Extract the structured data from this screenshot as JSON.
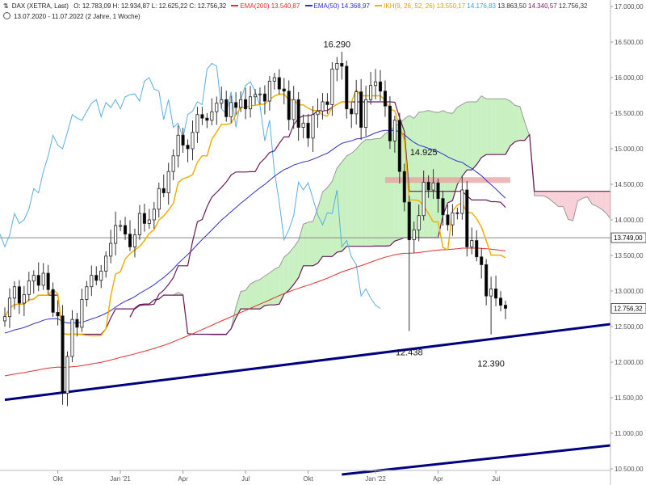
{
  "header": {
    "line1": {
      "symbol": "DAX (XETRA, Last)",
      "ohlc": "O: 12.783,09  H: 12.934,87  L: 12.625,22  C: 12.756,32",
      "ema200_label": "EMA(200)",
      "ema200_value": "13.540,87",
      "ema50_label": "EMA(50)",
      "ema50_value": "14.368,97",
      "ikh_label": "IKH(9, 26, 52, 26)",
      "ikh_v1": "13.550,17",
      "ikh_v2": "14.176,83",
      "ikh_v3": "13.863,50",
      "ikh_v4": "14.340,57",
      "ikh_v5": "12.756,32"
    },
    "line2": "13.07.2020 - 11.07.2022  (2 Jahre, 1 Woche)"
  },
  "colors": {
    "up": "#ffffff",
    "down": "#000000",
    "ema200": "#e03030",
    "ema50": "#3030cc",
    "tenkan": "#f0b000",
    "kijun": "#6a1a5a",
    "chikou": "#5aaee0",
    "cloud_bull": "#c8f0c0",
    "cloud_bear": "#f8d0d8",
    "trend": "#000080",
    "resistance": "#e8a0a0",
    "hline": "#888888"
  },
  "annotations": [
    "16.290",
    "14.925",
    "12.438",
    "12.390"
  ],
  "price_tags": {
    "hline": "13.749,00",
    "last": "12.756,32"
  },
  "chart_data": {
    "type": "candlestick",
    "ylim": [
      10500,
      17000
    ],
    "yticks": [
      "17.000,00",
      "16.500,00",
      "16.000,00",
      "15.500,00",
      "15.000,00",
      "14.500,00",
      "14.000,00",
      "13.500,00",
      "13.000,00",
      "12.500,00",
      "12.000,00",
      "11.500,00",
      "11.000,00",
      "10.500,00"
    ],
    "ytick_values": [
      17000,
      16500,
      16000,
      15500,
      15000,
      14500,
      14000,
      13500,
      13000,
      12500,
      12000,
      11500,
      11000,
      10500
    ],
    "xticks": [
      "Okt",
      "Jan '21",
      "Apr",
      "Jul",
      "Okt",
      "Jan '22",
      "Apr",
      "Jul"
    ],
    "xtick_index": [
      11,
      24,
      37,
      50,
      63,
      77,
      90,
      102
    ],
    "n_weeks": 105,
    "weeks_ahead": 26,
    "closes": [
      12640,
      12900,
      13060,
      12830,
      12950,
      13140,
      13220,
      13080,
      13250,
      13020,
      12700,
      12650,
      11560,
      12080,
      12600,
      12490,
      12880,
      13060,
      13220,
      13150,
      13280,
      13490,
      13670,
      13920,
      13920,
      13800,
      13620,
      13790,
      14090,
      13950,
      14000,
      14150,
      14440,
      14380,
      14680,
      14900,
      15190,
      15050,
      15000,
      15230,
      15480,
      15430,
      15400,
      15520,
      15640,
      15690,
      15450,
      15650,
      15580,
      15690,
      15560,
      15730,
      15760,
      15770,
      15670,
      15950,
      16000,
      15840,
      15810,
      15410,
      15690,
      15300,
      15360,
      15150,
      15480,
      15530,
      15660,
      15620,
      16120,
      16200,
      16160,
      15560,
      15490,
      15800,
      15300,
      15690,
      15890,
      15940,
      15810,
      15600,
      15110,
      15400,
      14680,
      14250,
      13720,
      13860,
      14060,
      14530,
      14420,
      14520,
      14300,
      14070,
      13930,
      14100,
      14090,
      14420,
      13620,
      13710,
      13480,
      13370,
      12930,
      13030,
      12900,
      12800,
      12756
    ],
    "resistance_zone": [
      14520,
      14600
    ],
    "horizontal_line": 13749,
    "trend_lines": [
      {
        "p1": [
          0,
          11470
        ],
        "p2": [
          130,
          12570
        ]
      },
      {
        "p1": [
          70,
          10420
        ],
        "p2": [
          130,
          10860
        ]
      }
    ],
    "series": [
      {
        "name": "EMA(200)",
        "last_value": 13540.87
      },
      {
        "name": "EMA(50)",
        "last_value": 14368.97
      },
      {
        "name": "IKH(9, 26, 52, 26)",
        "last_values": [
          13550.17,
          14176.83,
          13863.5,
          14340.57,
          12756.32
        ]
      }
    ]
  }
}
